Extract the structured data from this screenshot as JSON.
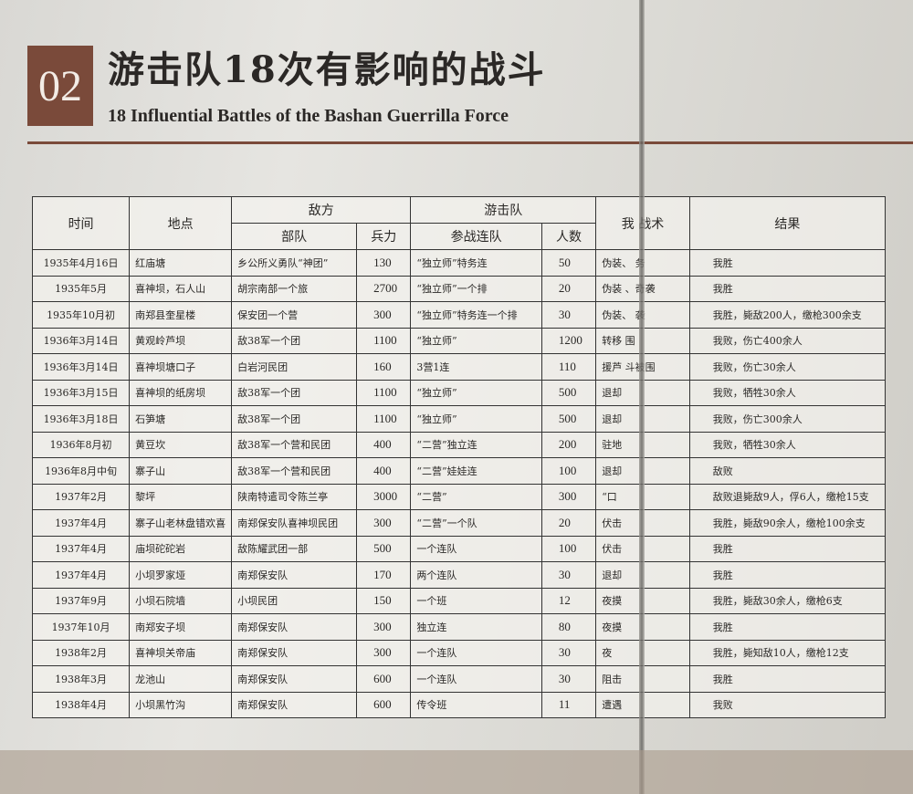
{
  "panel": {
    "number": "02",
    "title": "游击队18次有影响的战斗",
    "subtitle": "18 Influential Battles of the Bashan Guerrilla Force",
    "accent_color": "#7a4a3a"
  },
  "table": {
    "headers": {
      "time": "时间",
      "place": "地点",
      "enemy": "敌方",
      "enemy_unit": "部队",
      "enemy_strength": "兵力",
      "guerrilla": "游击队",
      "guerrilla_unit": "参战连队",
      "guerrilla_count": "人数",
      "tactics": "我    战术",
      "result": "结果"
    },
    "rows": [
      [
        "1935年4月16日",
        "红庙塘",
        "乡公所义勇队“神团”",
        "130",
        "“独立师”特务连",
        "50",
        "伪装、  务",
        "我胜"
      ],
      [
        "1935年5月",
        "喜神坝，石人山",
        "胡宗南部一个旅",
        "2700",
        "“独立师”一个排",
        "20",
        "伪装  、奇袭",
        "我胜"
      ],
      [
        "1935年10月初",
        "南郑县奎星楼",
        "保安团一个营",
        "300",
        "“独立师”特务连一个排",
        "30",
        "伪装、  袭",
        "我胜，毙敌200人，缴枪300余支"
      ],
      [
        "1936年3月14日",
        "黄观岭芦坝",
        "敌38军一个团",
        "1100",
        "“独立师”",
        "1200",
        "转移  围",
        "我败，伤亡400余人"
      ],
      [
        "1936年3月14日",
        "喜神坝塘口子",
        "白岩河民团",
        "160",
        "3营1连",
        "110",
        "援芦  斗被围",
        "我败，伤亡30余人"
      ],
      [
        "1936年3月15日",
        "喜神坝的纸房坝",
        "敌38军一个团",
        "1100",
        "“独立师”",
        "500",
        "退却",
        "我败，牺牲30余人"
      ],
      [
        "1936年3月18日",
        "石笋塘",
        "敌38军一个团",
        "1100",
        "“独立师”",
        "500",
        "退却",
        "我败，伤亡300余人"
      ],
      [
        "1936年8月初",
        "黄豆坎",
        "敌38军一个营和民团",
        "400",
        "“二营”独立连",
        "200",
        "驻地",
        "我败，牺牲30余人"
      ],
      [
        "1936年8月中旬",
        "寨子山",
        "敌38军一个营和民团",
        "400",
        "“二营”娃娃连",
        "100",
        "退却",
        "敌败"
      ],
      [
        "1937年2月",
        "黎坪",
        "陕南特遣司令陈兰亭",
        "3000",
        "“二营”",
        "300",
        "“口",
        "敌败退毙敌9人，俘6人，缴枪15支"
      ],
      [
        "1937年4月",
        "寨子山老林盘错欢喜",
        "南郑保安队喜神坝民团",
        "300",
        "“二营”一个队",
        "20",
        "伏击",
        "我胜，毙敌90余人，缴枪100余支"
      ],
      [
        "1937年4月",
        "庙坝砣砣岩",
        "敌陈耀武团一部",
        "500",
        "一个连队",
        "100",
        "伏击",
        "我胜"
      ],
      [
        "1937年4月",
        "小坝罗家垭",
        "南郑保安队",
        "170",
        "两个连队",
        "30",
        "退却",
        "我胜"
      ],
      [
        "1937年9月",
        "小坝石院墙",
        "小坝民团",
        "150",
        "一个班",
        "12",
        "夜摸",
        "我胜，毙敌30余人，缴枪6支"
      ],
      [
        "1937年10月",
        "南郑安子坝",
        "南郑保安队",
        "300",
        "独立连",
        "80",
        "夜摸",
        "我胜"
      ],
      [
        "1938年2月",
        "喜神坝关帝庙",
        "南郑保安队",
        "300",
        "一个连队",
        "30",
        "夜",
        "我胜，毙知敌10人，缴枪12支"
      ],
      [
        "1938年3月",
        "龙池山",
        "南郑保安队",
        "600",
        "一个连队",
        "30",
        "阻击",
        "我胜"
      ],
      [
        "1938年4月",
        "小坝黑竹沟",
        "南郑保安队",
        "600",
        "传令班",
        "11",
        "遭遇",
        "我败"
      ]
    ]
  }
}
